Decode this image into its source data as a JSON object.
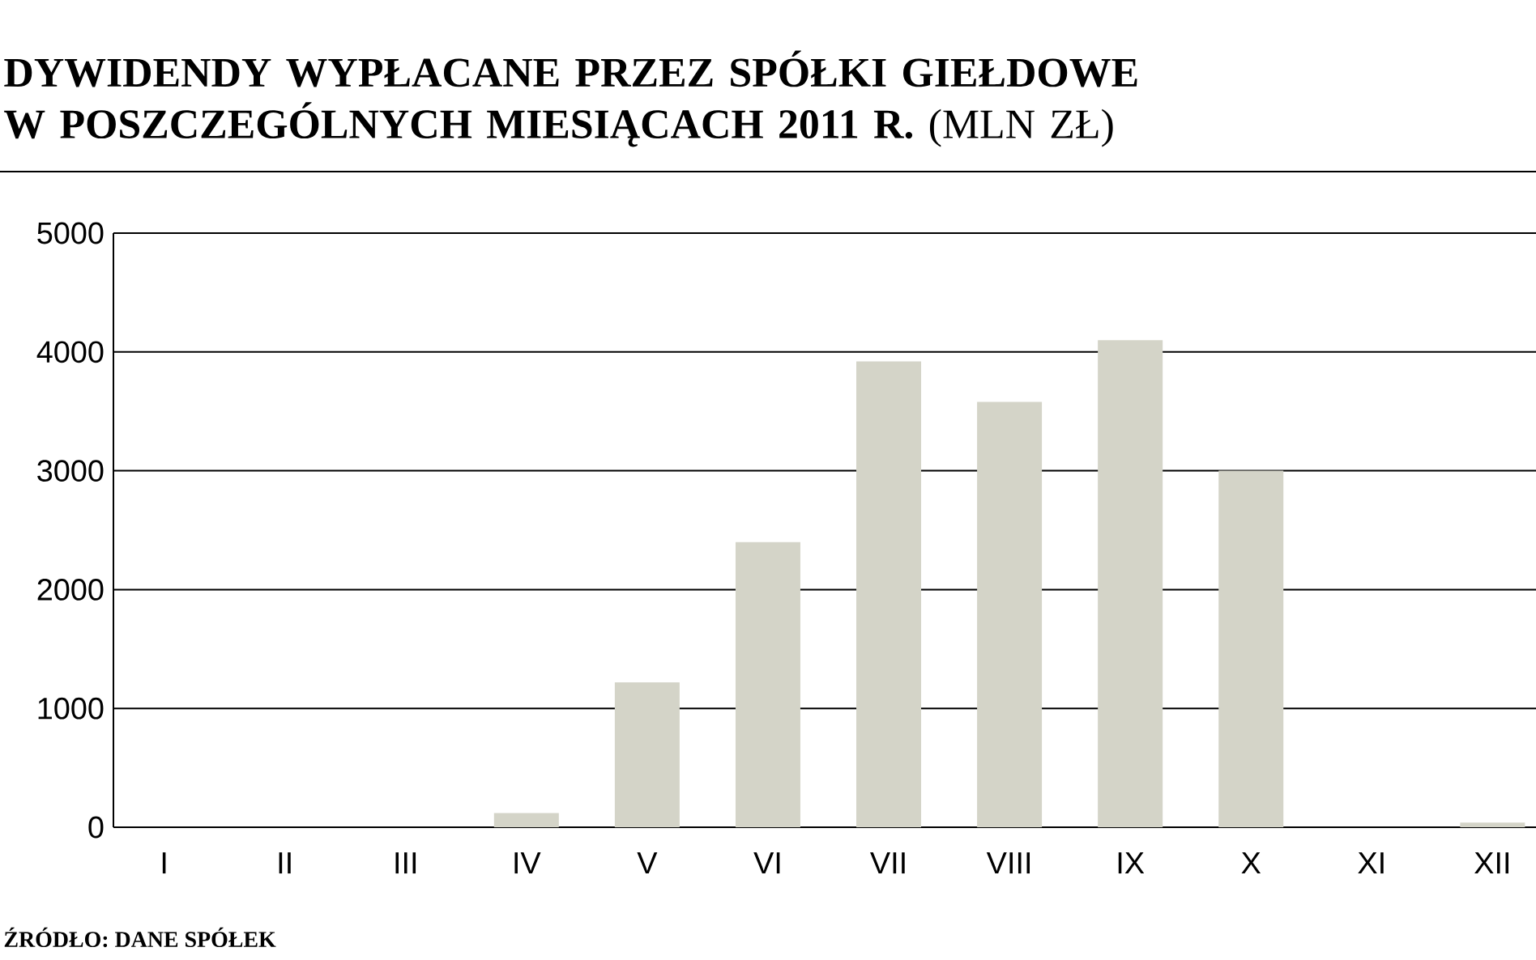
{
  "chart_data": {
    "type": "bar",
    "title": "DYWIDENDY WYPŁACANE PRZEZ SPÓŁKI GIEŁDOWE W POSZCZEGÓLNYCH MIESIĄCACH 2011 R.",
    "subtitle": "(MLN ZŁ)",
    "categories": [
      "I",
      "II",
      "III",
      "IV",
      "V",
      "VI",
      "VII",
      "VIII",
      "IX",
      "X",
      "XI",
      "XII"
    ],
    "values": [
      0,
      0,
      0,
      120,
      1220,
      2400,
      3920,
      3580,
      4100,
      3000,
      0,
      40
    ],
    "color": "#d4d4c8",
    "ylim": [
      0,
      5000
    ],
    "yticks": [
      0,
      1000,
      2000,
      3000,
      4000,
      5000
    ],
    "grid": "y",
    "annotations": [
      "ŹRÓDŁO: DANE SPÓŁEK"
    ]
  }
}
